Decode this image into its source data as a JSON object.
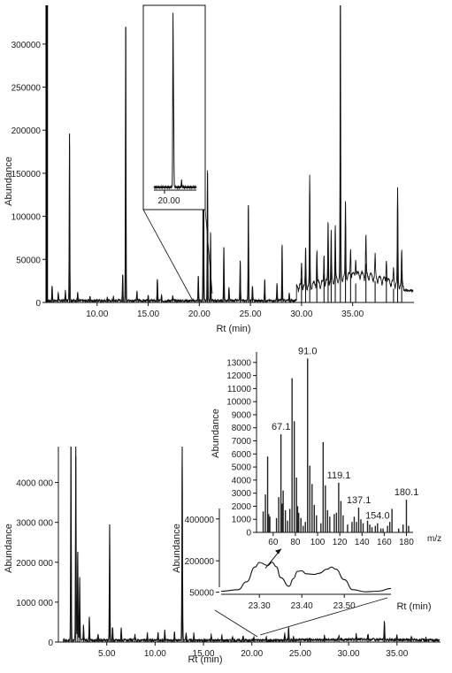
{
  "chart_data": [
    {
      "type": "line",
      "title": "",
      "xlabel": "Rt (min)",
      "ylabel": "Abundance",
      "xlim": [
        5.0,
        41.0
      ],
      "ylim": [
        0,
        345000
      ],
      "xticks": [
        10.0,
        15.0,
        20.0,
        25.0,
        30.0,
        35.0
      ],
      "xtick_labels": [
        "10.00",
        "15.00",
        "20.00",
        "25.00",
        "30.00",
        "35.00"
      ],
      "yticks": [
        0,
        50000,
        100000,
        150000,
        200000,
        250000,
        300000
      ],
      "ytick_labels": [
        "0",
        "50000",
        "100000",
        "150000",
        "200000",
        "250000",
        "300000"
      ],
      "peaks": [
        {
          "x": 5.0,
          "y": 345000
        },
        {
          "x": 5.6,
          "y": 18000
        },
        {
          "x": 6.2,
          "y": 9000
        },
        {
          "x": 6.9,
          "y": 12000
        },
        {
          "x": 7.3,
          "y": 196000
        },
        {
          "x": 8.1,
          "y": 10000
        },
        {
          "x": 9.3,
          "y": 5000
        },
        {
          "x": 11.0,
          "y": 4000
        },
        {
          "x": 11.6,
          "y": 6000
        },
        {
          "x": 12.5,
          "y": 31000
        },
        {
          "x": 12.8,
          "y": 320000
        },
        {
          "x": 13.9,
          "y": 11000
        },
        {
          "x": 15.0,
          "y": 5000
        },
        {
          "x": 15.9,
          "y": 26000
        },
        {
          "x": 16.3,
          "y": 6000
        },
        {
          "x": 17.4,
          "y": 5000
        },
        {
          "x": 19.9,
          "y": 30000
        },
        {
          "x": 20.4,
          "y": 345000
        },
        {
          "x": 20.8,
          "y": 150000
        },
        {
          "x": 21.1,
          "y": 80000
        },
        {
          "x": 22.4,
          "y": 64000
        },
        {
          "x": 22.9,
          "y": 15000
        },
        {
          "x": 24.0,
          "y": 48000
        },
        {
          "x": 24.8,
          "y": 113000
        },
        {
          "x": 25.2,
          "y": 18000
        },
        {
          "x": 26.4,
          "y": 25000
        },
        {
          "x": 27.6,
          "y": 21000
        },
        {
          "x": 28.1,
          "y": 65000
        },
        {
          "x": 28.8,
          "y": 10000
        },
        {
          "x": 30.0,
          "y": 28000
        },
        {
          "x": 30.4,
          "y": 42000
        },
        {
          "x": 30.8,
          "y": 127000
        },
        {
          "x": 31.5,
          "y": 40000
        },
        {
          "x": 32.2,
          "y": 33000
        },
        {
          "x": 32.6,
          "y": 72000
        },
        {
          "x": 32.9,
          "y": 55000
        },
        {
          "x": 33.3,
          "y": 61000
        },
        {
          "x": 33.8,
          "y": 345000
        },
        {
          "x": 34.3,
          "y": 88000
        },
        {
          "x": 34.8,
          "y": 33000
        },
        {
          "x": 35.3,
          "y": 22000
        },
        {
          "x": 36.3,
          "y": 45000
        },
        {
          "x": 37.2,
          "y": 25000
        },
        {
          "x": 38.3,
          "y": 30000
        },
        {
          "x": 39.0,
          "y": 16000
        },
        {
          "x": 39.4,
          "y": 108000
        },
        {
          "x": 39.8,
          "y": 38000
        }
      ],
      "inset": {
        "type": "line",
        "xtick_labels": [
          "20.00"
        ],
        "zoom_window_x": [
          19.5,
          21.5
        ],
        "peaks": [
          {
            "x": 20.4,
            "y_rel": 1.0
          },
          {
            "x": 20.43,
            "y_rel": 0.42
          },
          {
            "x": 20.8,
            "y_rel": 0.04
          }
        ]
      }
    },
    {
      "type": "line",
      "title": "",
      "xlabel": "Rt (min)",
      "ylabel": "Abundance",
      "xlim": [
        0.0,
        39.5
      ],
      "ylim": [
        0,
        4900000
      ],
      "xticks": [
        5.0,
        10.0,
        15.0,
        20.0,
        25.0,
        30.0,
        35.0
      ],
      "xtick_labels": [
        "5.00",
        "10.00",
        "15.00",
        "20.00",
        "25.00",
        "30.00",
        "35.00"
      ],
      "yticks": [
        0,
        1000000,
        2000000,
        3000000,
        4000000
      ],
      "ytick_labels": [
        "0",
        "1000 000",
        "2000 000",
        "3000 000",
        "4000 000"
      ],
      "peaks": [
        {
          "x": 1.3,
          "y": 4900000
        },
        {
          "x": 1.8,
          "y": 4900000
        },
        {
          "x": 2.0,
          "y": 2250000
        },
        {
          "x": 2.2,
          "y": 1600000
        },
        {
          "x": 2.6,
          "y": 380000
        },
        {
          "x": 3.2,
          "y": 620000
        },
        {
          "x": 4.1,
          "y": 180000
        },
        {
          "x": 5.3,
          "y": 2950000
        },
        {
          "x": 5.6,
          "y": 350000
        },
        {
          "x": 6.5,
          "y": 320000
        },
        {
          "x": 7.9,
          "y": 140000
        },
        {
          "x": 9.2,
          "y": 180000
        },
        {
          "x": 10.3,
          "y": 200000
        },
        {
          "x": 11.0,
          "y": 280000
        },
        {
          "x": 12.0,
          "y": 230000
        },
        {
          "x": 12.8,
          "y": 4900000
        },
        {
          "x": 13.2,
          "y": 210000
        },
        {
          "x": 14.0,
          "y": 170000
        },
        {
          "x": 15.8,
          "y": 150000
        },
        {
          "x": 16.9,
          "y": 130000
        },
        {
          "x": 18.0,
          "y": 110000
        },
        {
          "x": 19.1,
          "y": 120000
        },
        {
          "x": 20.2,
          "y": 90000
        },
        {
          "x": 21.5,
          "y": 80000
        },
        {
          "x": 23.4,
          "y": 180000
        },
        {
          "x": 23.8,
          "y": 320000
        },
        {
          "x": 24.3,
          "y": 90000
        },
        {
          "x": 26.0,
          "y": 70000
        },
        {
          "x": 27.5,
          "y": 100000
        },
        {
          "x": 29.0,
          "y": 80000
        },
        {
          "x": 30.8,
          "y": 130000
        },
        {
          "x": 32.0,
          "y": 160000
        },
        {
          "x": 33.7,
          "y": 480000
        },
        {
          "x": 35.0,
          "y": 140000
        },
        {
          "x": 36.5,
          "y": 90000
        },
        {
          "x": 38.0,
          "y": 70000
        }
      ],
      "inset_chromatogram": {
        "type": "line",
        "xlabel": "Rt (min)",
        "ylabel": "Abundance",
        "xlim": [
          23.21,
          23.61
        ],
        "ylim": [
          40000,
          450000
        ],
        "xticks": [
          23.3,
          23.4,
          23.5
        ],
        "xtick_labels": [
          "23.30",
          "23.40",
          "23.50"
        ],
        "yticks": [
          50000,
          200000,
          400000
        ],
        "ytick_labels": [
          "50000",
          "200000",
          "400000"
        ],
        "x": [
          23.21,
          23.25,
          23.27,
          23.29,
          23.3,
          23.32,
          23.33,
          23.34,
          23.35,
          23.37,
          23.38,
          23.39,
          23.4,
          23.41,
          23.43,
          23.44,
          23.46,
          23.47,
          23.48,
          23.5,
          23.52,
          23.55,
          23.58,
          23.61
        ],
        "y": [
          55000,
          62000,
          100000,
          170000,
          192000,
          178000,
          193000,
          172000,
          120000,
          78000,
          115000,
          150000,
          152000,
          138000,
          135000,
          140000,
          160000,
          170000,
          160000,
          110000,
          62000,
          52000,
          55000,
          68000
        ]
      },
      "inset_mass_spectrum": {
        "type": "bar",
        "xlabel": "m/z",
        "ylabel": "Abundance",
        "xlim": [
          45,
          186
        ],
        "ylim": [
          0,
          13800
        ],
        "xticks": [
          60,
          80,
          100,
          120,
          140,
          160,
          180
        ],
        "xtick_labels": [
          "60",
          "80",
          "100",
          "120",
          "140",
          "160",
          "180"
        ],
        "yticks": [
          0,
          1000,
          2000,
          3000,
          4000,
          5000,
          6000,
          7000,
          8000,
          9000,
          10000,
          11000,
          12000,
          13000
        ],
        "ytick_labels": [
          "0",
          "1000",
          "2000",
          "3000",
          "4000",
          "5000",
          "6000",
          "7000",
          "8000",
          "9000",
          "10000",
          "11000",
          "12000",
          "13000"
        ],
        "peak_labels": [
          {
            "mz": 67.1,
            "text": "67.1"
          },
          {
            "mz": 91.0,
            "text": "91.0"
          },
          {
            "mz": 119.1,
            "text": "119.1"
          },
          {
            "mz": 137.1,
            "text": "137.1"
          },
          {
            "mz": 154.0,
            "text": "154.0"
          },
          {
            "mz": 180.1,
            "text": "180.1"
          }
        ],
        "mz": [
          51,
          53,
          55,
          56,
          57,
          63,
          65,
          67,
          68,
          69,
          71,
          73,
          75,
          77,
          79,
          81,
          82,
          83,
          85,
          87,
          89,
          91,
          93,
          95,
          97,
          99,
          103,
          105,
          107,
          109,
          111,
          115,
          117,
          119,
          121,
          123,
          127,
          131,
          133,
          135,
          137,
          139,
          141,
          145,
          147,
          149,
          152,
          154,
          157,
          159,
          163,
          165,
          167,
          173,
          177,
          180,
          182
        ],
        "abundance": [
          1600,
          2900,
          5800,
          1400,
          1200,
          1100,
          2700,
          7500,
          2200,
          3200,
          1700,
          900,
          1800,
          11800,
          8500,
          4200,
          2000,
          1500,
          1100,
          500,
          800,
          13300,
          5100,
          3700,
          2100,
          1300,
          700,
          6900,
          3600,
          1700,
          1200,
          1400,
          1500,
          3800,
          2400,
          1300,
          600,
          800,
          1200,
          800,
          1900,
          1000,
          700,
          900,
          600,
          400,
          500,
          700,
          300,
          300,
          500,
          800,
          1800,
          300,
          600,
          2500,
          500
        ]
      }
    }
  ]
}
